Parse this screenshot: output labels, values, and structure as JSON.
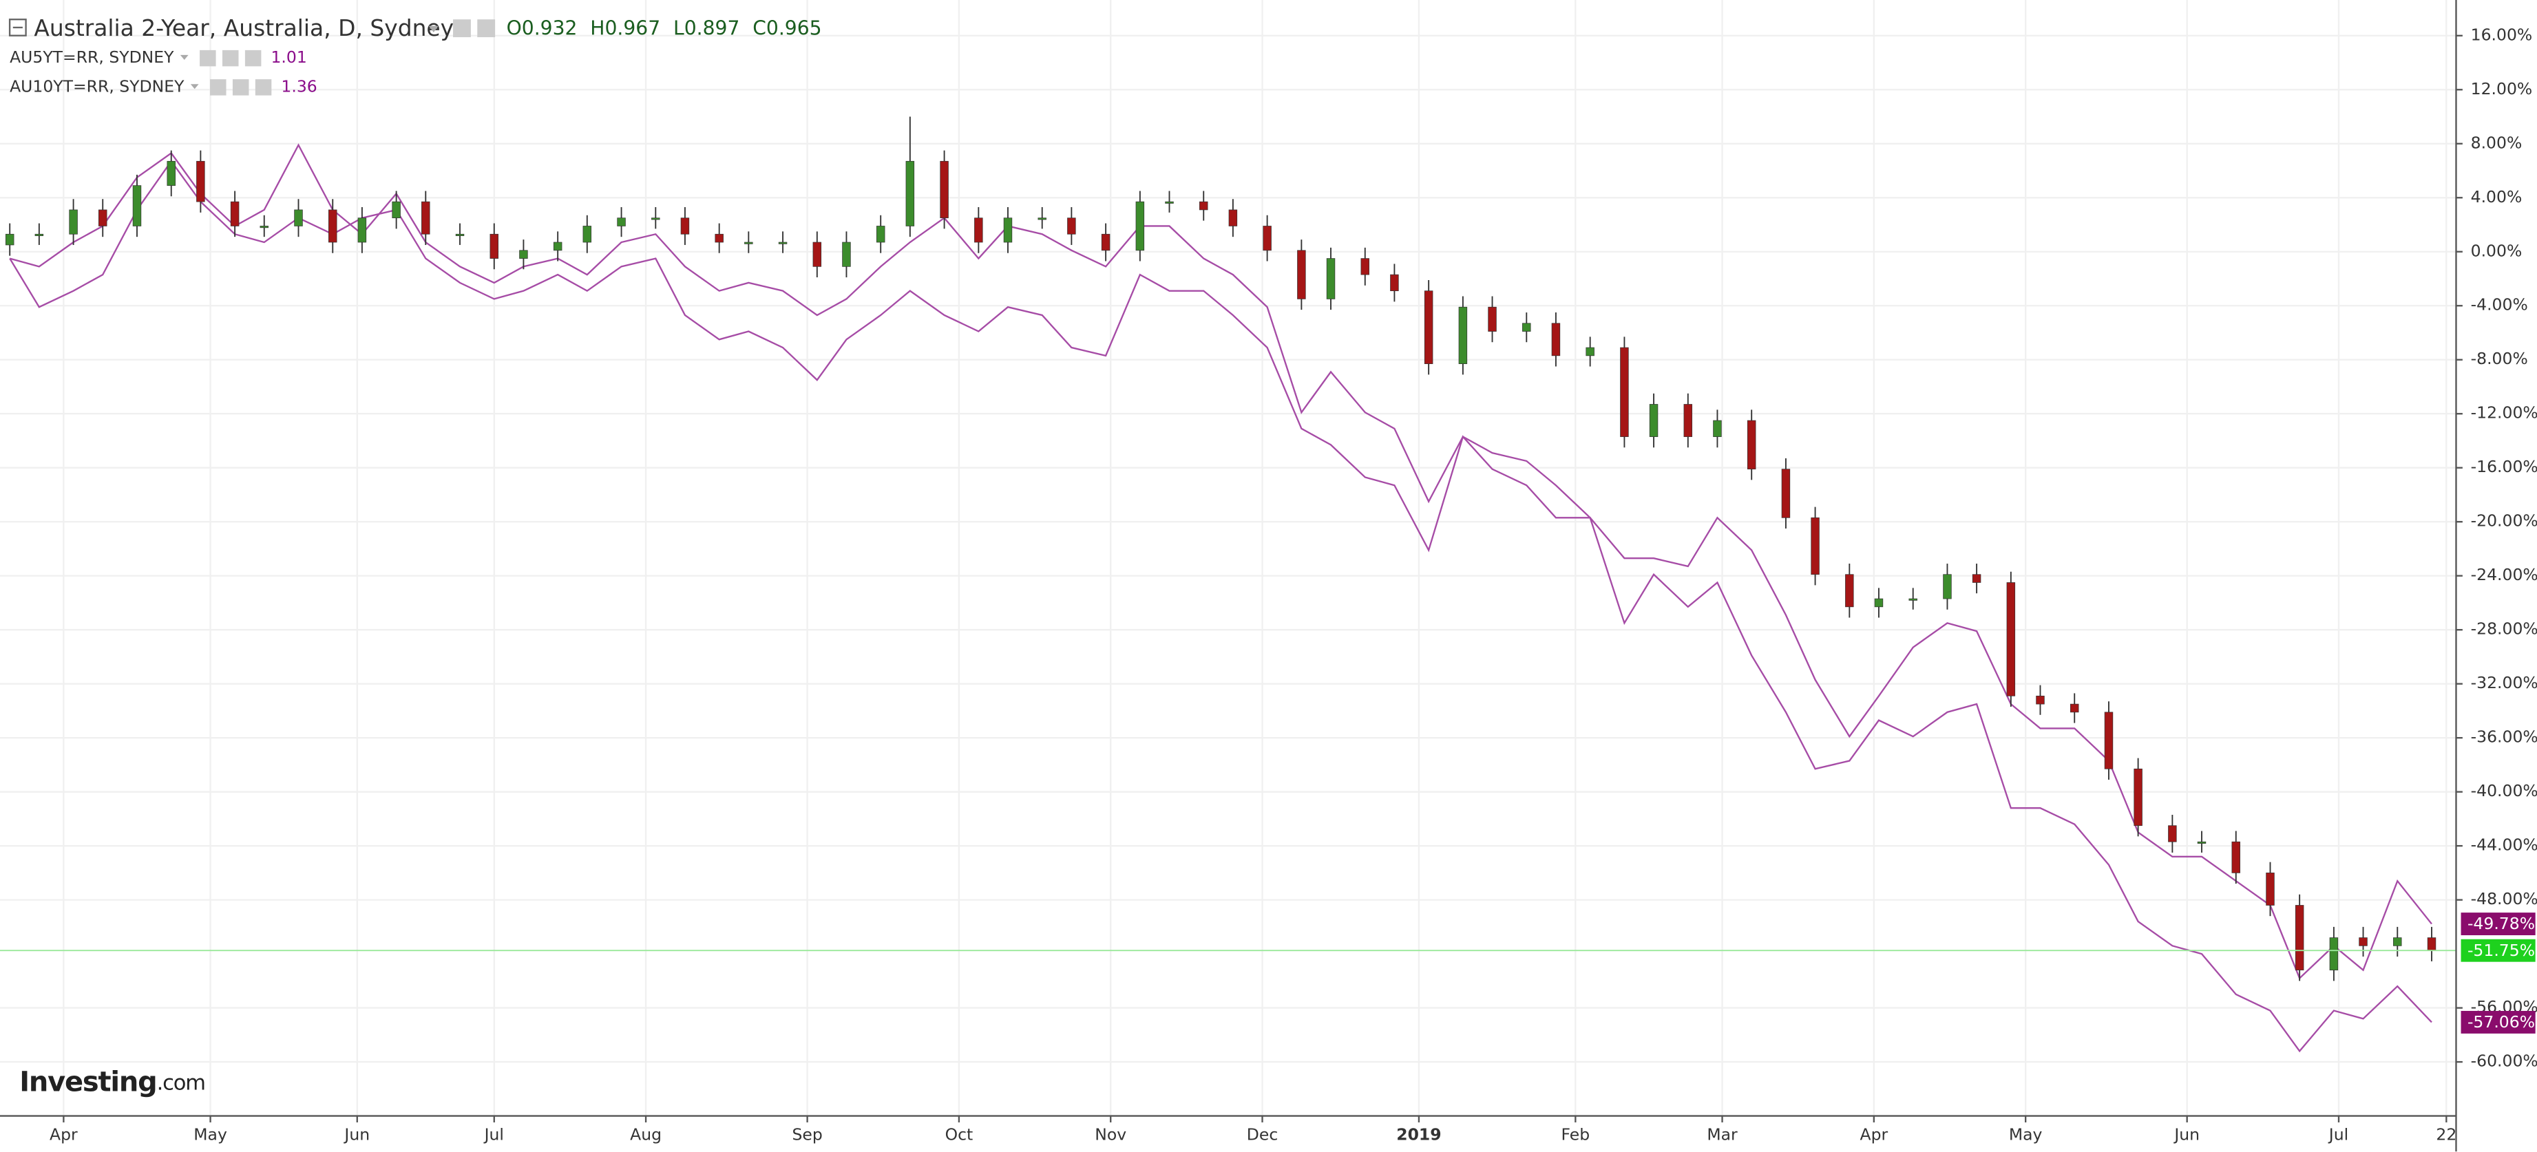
{
  "chart_data": {
    "type": "candlestick",
    "title": "Australia 2-Year, Australia, D, Sydney",
    "ohlc_readout": [
      {
        "label": "O",
        "value": 0.932
      },
      {
        "label": "H",
        "value": 0.967
      },
      {
        "label": "L",
        "value": 0.897
      },
      {
        "label": "C",
        "value": 0.965
      }
    ],
    "x": [
      2,
      8,
      15,
      21,
      28,
      35,
      41,
      48,
      54,
      61,
      68,
      74,
      81,
      87,
      94,
      101,
      107,
      114,
      120,
      127,
      134,
      140,
      147,
      153,
      160,
      167,
      173,
      180,
      186,
      193,
      200,
      206,
      213,
      219,
      226,
      233,
      239,
      246,
      252,
      259,
      266,
      272,
      279,
      285,
      292,
      299,
      305,
      312,
      318,
      325,
      332,
      338,
      345,
      351,
      358,
      365,
      371,
      378,
      384,
      391,
      398,
      404,
      411,
      417,
      424,
      431,
      437,
      444,
      450,
      457,
      464,
      470,
      477,
      483,
      490,
      497
    ],
    "candles": {
      "up_color": "#3c8c2c",
      "down_color": "#a51616",
      "last_color": "#1ed11e",
      "last_label": "-51.75%",
      "open": [
        0.5,
        1.3,
        1.3,
        3.1,
        1.9,
        4.9,
        6.7,
        3.7,
        1.9,
        1.9,
        3.1,
        0.7,
        2.5,
        3.7,
        1.3,
        1.3,
        -0.5,
        0.1,
        0.7,
        1.9,
        2.5,
        2.5,
        1.3,
        0.7,
        0.7,
        0.7,
        -1.1,
        0.7,
        1.9,
        6.7,
        2.5,
        0.7,
        2.5,
        2.5,
        1.3,
        0.1,
        3.7,
        3.7,
        3.1,
        1.9,
        0.1,
        -3.5,
        -0.5,
        -1.7,
        -2.9,
        -8.3,
        -4.1,
        -5.9,
        -5.3,
        -7.7,
        -7.1,
        -13.7,
        -11.3,
        -13.7,
        -12.5,
        -16.1,
        -19.7,
        -23.9,
        -26.3,
        -25.7,
        -25.7,
        -23.9,
        -24.5,
        -32.9,
        -33.5,
        -34.1,
        -38.3,
        -42.5,
        -43.7,
        -43.7,
        -46.0,
        -48.4,
        -53.2,
        -50.8,
        -51.4,
        -50.8
      ],
      "high": [
        2.1,
        2.1,
        3.9,
        3.9,
        5.7,
        7.5,
        7.5,
        4.5,
        2.7,
        3.9,
        3.9,
        3.3,
        4.5,
        4.5,
        2.1,
        2.1,
        0.9,
        1.5,
        2.7,
        3.3,
        3.3,
        3.3,
        2.1,
        1.5,
        1.5,
        1.5,
        1.5,
        2.7,
        10.0,
        7.5,
        3.3,
        3.3,
        3.3,
        3.3,
        2.1,
        4.5,
        4.5,
        4.5,
        3.9,
        2.7,
        0.9,
        0.3,
        0.3,
        -0.9,
        -2.1,
        -3.3,
        -3.3,
        -4.5,
        -4.5,
        -6.3,
        -6.3,
        -10.5,
        -10.5,
        -11.7,
        -11.7,
        -15.3,
        -18.9,
        -23.1,
        -24.9,
        -24.9,
        -23.1,
        -23.1,
        -23.7,
        -32.1,
        -32.7,
        -33.3,
        -37.5,
        -41.7,
        -42.9,
        -42.9,
        -45.2,
        -47.6,
        -50.0,
        -50.0,
        -50.0,
        -50.0
      ],
      "low": [
        -0.3,
        0.5,
        0.5,
        1.1,
        1.1,
        4.1,
        2.9,
        1.1,
        1.1,
        1.1,
        -0.1,
        -0.1,
        1.7,
        0.5,
        0.5,
        -1.3,
        -1.3,
        -0.7,
        -0.1,
        1.1,
        1.7,
        0.5,
        -0.1,
        -0.1,
        -0.1,
        -1.9,
        -1.9,
        -0.1,
        1.1,
        1.7,
        -0.1,
        -0.1,
        1.7,
        0.5,
        -0.7,
        -0.7,
        2.9,
        2.3,
        1.1,
        -0.7,
        -4.3,
        -4.3,
        -2.5,
        -3.7,
        -9.1,
        -9.1,
        -6.7,
        -6.7,
        -8.5,
        -8.5,
        -14.5,
        -14.5,
        -14.5,
        -14.5,
        -16.9,
        -20.5,
        -24.7,
        -27.1,
        -27.1,
        -26.5,
        -26.5,
        -25.3,
        -33.7,
        -34.3,
        -34.9,
        -39.1,
        -43.3,
        -44.5,
        -44.5,
        -46.8,
        -49.2,
        -54.0,
        -54.0,
        -52.2,
        -52.2,
        -52.55
      ],
      "close": [
        1.3,
        1.3,
        3.1,
        1.9,
        4.9,
        6.7,
        3.7,
        1.9,
        1.9,
        3.1,
        0.7,
        2.5,
        3.7,
        1.3,
        1.3,
        -0.5,
        0.1,
        0.7,
        1.9,
        2.5,
        2.5,
        1.3,
        0.7,
        0.7,
        0.7,
        -1.1,
        0.7,
        1.9,
        6.7,
        2.5,
        0.7,
        2.5,
        2.5,
        1.3,
        0.1,
        3.7,
        3.7,
        3.1,
        1.9,
        0.1,
        -3.5,
        -0.5,
        -1.7,
        -2.9,
        -8.3,
        -4.1,
        -5.9,
        -5.3,
        -7.7,
        -7.1,
        -13.7,
        -11.3,
        -13.7,
        -12.5,
        -16.1,
        -19.7,
        -23.9,
        -26.3,
        -25.7,
        -25.7,
        -23.9,
        -24.5,
        -32.9,
        -33.5,
        -34.1,
        -38.3,
        -42.5,
        -43.7,
        -43.7,
        -46.0,
        -48.4,
        -53.2,
        -50.8,
        -51.4,
        -50.8,
        -51.75
      ]
    },
    "series": [
      {
        "name": "AU5YT=RR, SYDNEY",
        "color": "#a64ca6",
        "tag_color": "#8a0c6c",
        "legend_value": 1.01,
        "last_label": "-49.78%",
        "values": [
          -0.5,
          -1.1,
          0.7,
          1.9,
          5.5,
          7.3,
          4.3,
          1.9,
          3.1,
          7.9,
          3.1,
          1.3,
          4.3,
          0.7,
          -1.1,
          -2.3,
          -1.1,
          -0.5,
          -1.7,
          0.7,
          1.3,
          -1.1,
          -2.9,
          -2.3,
          -2.9,
          -4.7,
          -3.5,
          -1.1,
          0.7,
          2.5,
          -0.5,
          1.9,
          1.3,
          0.1,
          -1.1,
          1.9,
          1.9,
          -0.5,
          -1.7,
          -4.1,
          -11.9,
          -8.9,
          -11.9,
          -13.1,
          -18.5,
          -13.7,
          -14.9,
          -15.5,
          -17.3,
          -19.7,
          -22.7,
          -22.7,
          -23.3,
          -19.7,
          -22.1,
          -26.9,
          -31.7,
          -35.9,
          -32.9,
          -29.3,
          -27.5,
          -28.1,
          -33.5,
          -35.3,
          -35.3,
          -37.7,
          -43.0,
          -44.8,
          -44.8,
          -46.6,
          -48.4,
          -53.8,
          -51.4,
          -53.2,
          -46.6,
          -49.78
        ]
      },
      {
        "name": "AU10YT=RR, SYDNEY",
        "color": "#a64ca6",
        "tag_color": "#8a0c6c",
        "legend_value": 1.36,
        "last_label": "-57.06%",
        "values": [
          -0.5,
          -4.1,
          -2.9,
          -1.7,
          3.1,
          6.7,
          3.7,
          1.3,
          0.7,
          2.5,
          1.3,
          2.5,
          3.1,
          -0.5,
          -2.3,
          -3.5,
          -2.9,
          -1.7,
          -2.9,
          -1.1,
          -0.5,
          -4.7,
          -6.5,
          -5.9,
          -7.1,
          -9.5,
          -6.5,
          -4.7,
          -2.9,
          -4.7,
          -5.9,
          -4.1,
          -4.7,
          -7.1,
          -7.7,
          -1.7,
          -2.9,
          -2.9,
          -4.7,
          -7.1,
          -13.1,
          -14.3,
          -16.7,
          -17.3,
          -22.1,
          -13.7,
          -16.1,
          -17.3,
          -19.7,
          -19.7,
          -27.5,
          -23.9,
          -26.3,
          -24.5,
          -29.9,
          -34.1,
          -38.3,
          -37.7,
          -34.7,
          -35.9,
          -34.1,
          -33.5,
          -41.2,
          -41.2,
          -42.4,
          -45.4,
          -49.6,
          -51.4,
          -52.0,
          -55.0,
          -56.2,
          -59.2,
          -56.2,
          -56.8,
          -54.4,
          -57.06
        ]
      }
    ],
    "xlim": [
      0,
      501
    ],
    "xticks": [
      {
        "value": 13,
        "label": "Apr"
      },
      {
        "value": 43,
        "label": "May"
      },
      {
        "value": 73,
        "label": "Jun"
      },
      {
        "value": 101,
        "label": "Jul"
      },
      {
        "value": 132,
        "label": "Aug"
      },
      {
        "value": 165,
        "label": "Sep"
      },
      {
        "value": 196,
        "label": "Oct"
      },
      {
        "value": 227,
        "label": "Nov"
      },
      {
        "value": 258,
        "label": "Dec"
      },
      {
        "value": 290,
        "label": "2019"
      },
      {
        "value": 322,
        "label": "Feb"
      },
      {
        "value": 352,
        "label": "Mar"
      },
      {
        "value": 383,
        "label": "Apr"
      },
      {
        "value": 414,
        "label": "May"
      },
      {
        "value": 447,
        "label": "Jun"
      },
      {
        "value": 478,
        "label": "Jul"
      },
      {
        "value": 500,
        "label": "22"
      }
    ],
    "ylim": [
      -64,
      18.4
    ],
    "yticks": [
      {
        "value": 16,
        "label": "16.00%"
      },
      {
        "value": 12,
        "label": "12.00%"
      },
      {
        "value": 8,
        "label": "8.00%"
      },
      {
        "value": 4,
        "label": "4.00%"
      },
      {
        "value": 0,
        "label": "0.00%"
      },
      {
        "value": -4,
        "label": "-4.00%"
      },
      {
        "value": -8,
        "label": "-8.00%"
      },
      {
        "value": -12,
        "label": "-12.00%"
      },
      {
        "value": -16,
        "label": "-16.00%"
      },
      {
        "value": -20,
        "label": "-20.00%"
      },
      {
        "value": -24,
        "label": "-24.00%"
      },
      {
        "value": -28,
        "label": "-28.00%"
      },
      {
        "value": -32,
        "label": "-32.00%"
      },
      {
        "value": -36,
        "label": "-36.00%"
      },
      {
        "value": -40,
        "label": "-40.00%"
      },
      {
        "value": -44,
        "label": "-44.00%"
      },
      {
        "value": -48,
        "label": "-48.00%"
      },
      {
        "value": -56,
        "label": "-56.00%"
      },
      {
        "value": -60,
        "label": "-60.00%"
      }
    ],
    "grid": true,
    "logo": {
      "name": "Investing",
      "suffix": ".com"
    }
  }
}
